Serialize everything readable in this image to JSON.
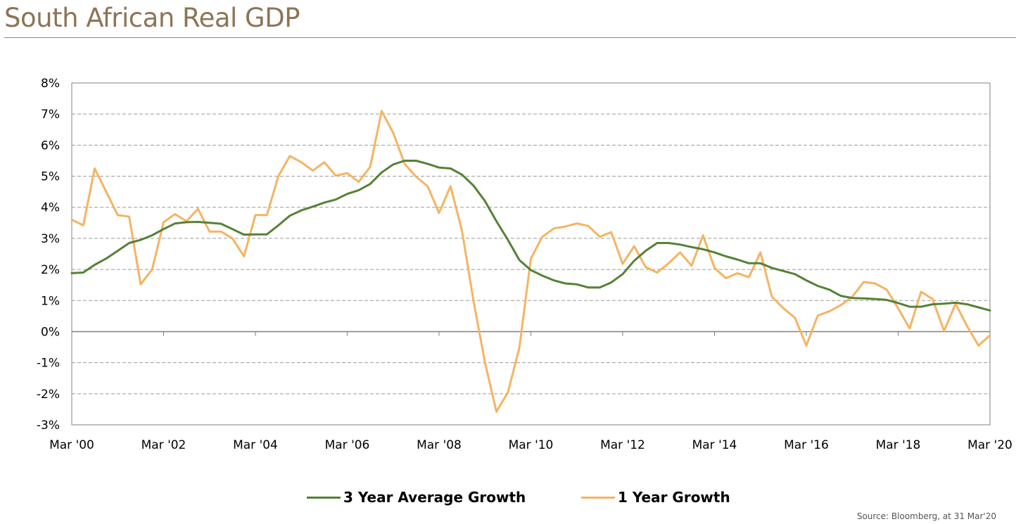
{
  "title": "South African Real GDP",
  "source": "Source: Bloomberg, at 31 Mar'20",
  "chart_data": {
    "type": "line",
    "title": "South African Real GDP",
    "xlabel": "",
    "ylabel": "",
    "ylim": [
      -3,
      8
    ],
    "xlim": [
      2000.0,
      2020.0
    ],
    "y_ticks": [
      "8%",
      "7%",
      "6%",
      "5%",
      "4%",
      "3%",
      "2%",
      "1%",
      "0%",
      "-1%",
      "-2%",
      "-3%"
    ],
    "y_tick_values": [
      8,
      7,
      6,
      5,
      4,
      3,
      2,
      1,
      0,
      -1,
      -2,
      -3
    ],
    "x_ticks": [
      "Mar '00",
      "Mar '02",
      "Mar '04",
      "Mar '06",
      "Mar '08",
      "Mar '10",
      "Mar '12",
      "Mar '14",
      "Mar '16",
      "Mar '18",
      "Mar '20"
    ],
    "x_tick_values": [
      2000,
      2002,
      2004,
      2006,
      2008,
      2010,
      2012,
      2014,
      2016,
      2018,
      2020
    ],
    "grid": true,
    "legend": "bottom-center",
    "series": [
      {
        "name": "3 Year Average Growth",
        "color": "#548235",
        "x": [
          2000.0,
          2000.25,
          2000.5,
          2000.75,
          2001.0,
          2001.25,
          2001.5,
          2001.75,
          2002.0,
          2002.25,
          2002.5,
          2002.75,
          2003.0,
          2003.25,
          2003.5,
          2003.75,
          2004.0,
          2004.25,
          2004.5,
          2004.75,
          2005.0,
          2005.25,
          2005.5,
          2005.75,
          2006.0,
          2006.25,
          2006.5,
          2006.75,
          2007.0,
          2007.25,
          2007.5,
          2007.75,
          2008.0,
          2008.25,
          2008.5,
          2008.75,
          2009.0,
          2009.25,
          2009.5,
          2009.75,
          2010.0,
          2010.25,
          2010.5,
          2010.75,
          2011.0,
          2011.25,
          2011.5,
          2011.75,
          2012.0,
          2012.25,
          2012.5,
          2012.75,
          2013.0,
          2013.25,
          2013.5,
          2013.75,
          2014.0,
          2014.25,
          2014.5,
          2014.75,
          2015.0,
          2015.25,
          2015.5,
          2015.75,
          2016.0,
          2016.25,
          2016.5,
          2016.75,
          2017.0,
          2017.25,
          2017.5,
          2017.75,
          2018.0,
          2018.25,
          2018.5,
          2018.75,
          2019.0,
          2019.25,
          2019.5,
          2019.75,
          2020.0
        ],
        "values": [
          1.88,
          1.9,
          2.15,
          2.35,
          2.6,
          2.85,
          2.95,
          3.1,
          3.3,
          3.48,
          3.52,
          3.53,
          3.5,
          3.47,
          3.3,
          3.12,
          3.13,
          3.13,
          3.42,
          3.73,
          3.9,
          4.02,
          4.15,
          4.25,
          4.43,
          4.55,
          4.75,
          5.12,
          5.38,
          5.5,
          5.5,
          5.4,
          5.28,
          5.25,
          5.05,
          4.7,
          4.2,
          3.55,
          2.95,
          2.3,
          1.98,
          1.8,
          1.65,
          1.55,
          1.52,
          1.42,
          1.42,
          1.58,
          1.85,
          2.28,
          2.6,
          2.85,
          2.85,
          2.8,
          2.72,
          2.65,
          2.55,
          2.42,
          2.32,
          2.2,
          2.2,
          2.05,
          1.95,
          1.85,
          1.65,
          1.47,
          1.35,
          1.15,
          1.08,
          1.07,
          1.05,
          1.02,
          0.92,
          0.8,
          0.8,
          0.88,
          0.9,
          0.93,
          0.88,
          0.78,
          0.68
        ]
      },
      {
        "name": "1 Year Growth",
        "color": "#f4b462",
        "x": [
          2000.0,
          2000.25,
          2000.5,
          2000.75,
          2001.0,
          2001.25,
          2001.5,
          2001.75,
          2002.0,
          2002.25,
          2002.5,
          2002.75,
          2003.0,
          2003.25,
          2003.5,
          2003.75,
          2004.0,
          2004.25,
          2004.5,
          2004.75,
          2005.0,
          2005.25,
          2005.5,
          2005.75,
          2006.0,
          2006.25,
          2006.5,
          2006.75,
          2007.0,
          2007.25,
          2007.5,
          2007.75,
          2008.0,
          2008.25,
          2008.5,
          2008.75,
          2009.0,
          2009.25,
          2009.5,
          2009.75,
          2010.0,
          2010.25,
          2010.5,
          2010.75,
          2011.0,
          2011.25,
          2011.5,
          2011.75,
          2012.0,
          2012.25,
          2012.5,
          2012.75,
          2013.0,
          2013.25,
          2013.5,
          2013.75,
          2014.0,
          2014.25,
          2014.5,
          2014.75,
          2015.0,
          2015.25,
          2015.5,
          2015.75,
          2016.0,
          2016.25,
          2016.5,
          2016.75,
          2017.0,
          2017.25,
          2017.5,
          2017.75,
          2018.0,
          2018.25,
          2018.5,
          2018.75,
          2019.0,
          2019.25,
          2019.5,
          2019.75,
          2020.0
        ],
        "values": [
          3.6,
          3.42,
          5.25,
          4.5,
          3.75,
          3.7,
          1.52,
          2.0,
          3.52,
          3.78,
          3.55,
          3.95,
          3.22,
          3.22,
          3.0,
          2.42,
          3.75,
          3.75,
          5.0,
          5.65,
          5.45,
          5.18,
          5.45,
          5.02,
          5.1,
          4.82,
          5.3,
          7.1,
          6.4,
          5.4,
          4.98,
          4.68,
          3.82,
          4.68,
          3.25,
          1.0,
          -1.0,
          -2.58,
          -1.95,
          -0.52,
          2.35,
          3.05,
          3.32,
          3.38,
          3.48,
          3.4,
          3.05,
          3.2,
          2.18,
          2.75,
          2.08,
          1.9,
          2.2,
          2.55,
          2.12,
          3.1,
          2.05,
          1.72,
          1.88,
          1.75,
          2.55,
          1.12,
          0.75,
          0.45,
          -0.45,
          0.52,
          0.65,
          0.85,
          1.12,
          1.6,
          1.55,
          1.35,
          0.75,
          0.1,
          1.28,
          1.05,
          0.02,
          0.9,
          0.18,
          -0.45,
          -0.12
        ]
      }
    ]
  }
}
